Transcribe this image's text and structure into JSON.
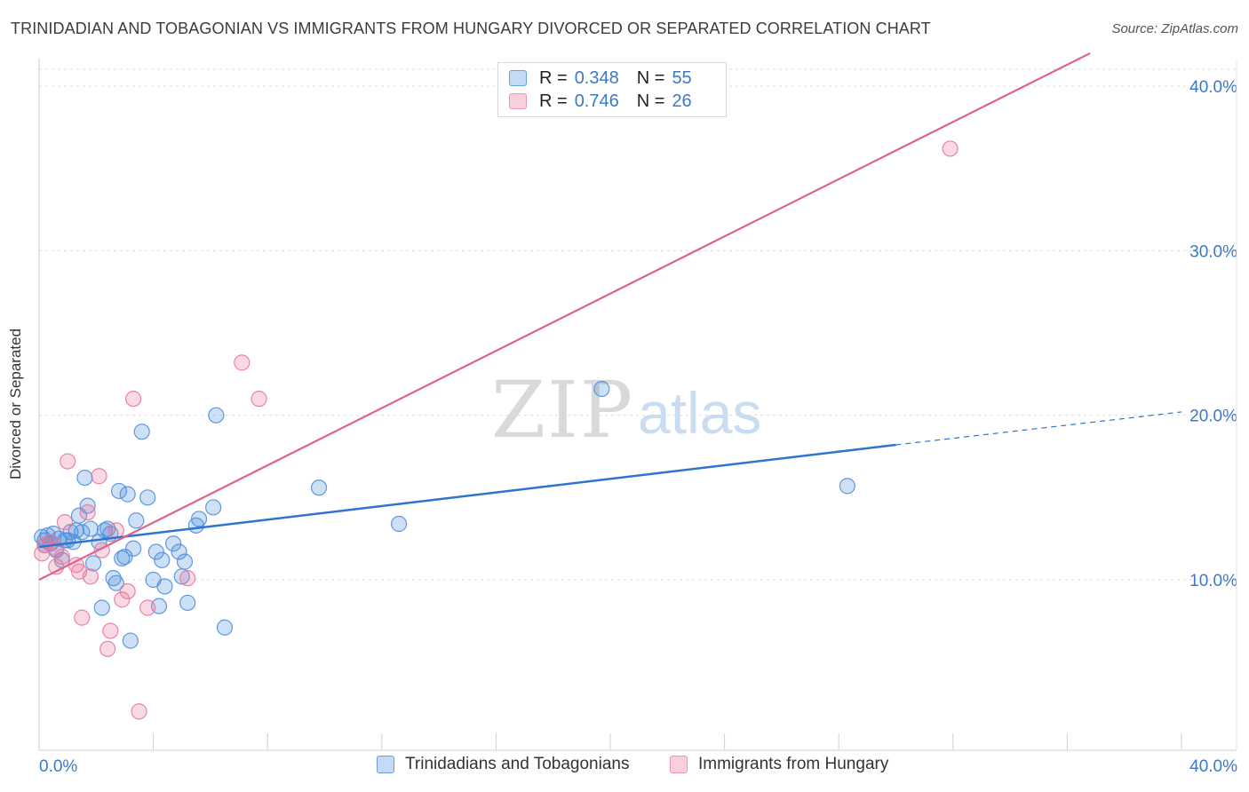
{
  "title": "TRINIDADIAN AND TOBAGONIAN VS IMMIGRANTS FROM HUNGARY DIVORCED OR SEPARATED CORRELATION CHART",
  "source": "Source: ZipAtlas.com",
  "watermark": {
    "zip": "ZIP",
    "atlas": "atlas"
  },
  "legend_top": [
    {
      "r_label": "R =",
      "r_value": "0.348",
      "n_label": "N =",
      "n_value": "55"
    },
    {
      "r_label": "R =",
      "r_value": "0.746",
      "n_label": "N =",
      "n_value": "26"
    }
  ],
  "chart_data": {
    "type": "scatter",
    "title": "TRINIDADIAN AND TOBAGONIAN VS IMMIGRANTS FROM HUNGARY DIVORCED OR SEPARATED CORRELATION CHART",
    "xlabel": "",
    "ylabel": "Divorced or Separated",
    "xlim": [
      0,
      40
    ],
    "ylim": [
      0,
      42
    ],
    "x_tick_labels": [
      "0.0%",
      "40.0%"
    ],
    "y_ticks": [
      10,
      20,
      30,
      40
    ],
    "y_tick_labels": [
      "10.0%",
      "20.0%",
      "30.0%",
      "40.0%"
    ],
    "grid": true,
    "colors": {
      "blue": "#4f8fdc",
      "pink": "#e8789c",
      "blue_line": "#2f74d0",
      "pink_line": "#e0628c",
      "tick_text": "#3a78c9"
    },
    "series": [
      {
        "name": "Trinidadians and Tobagonians",
        "color": "blue",
        "points": [
          [
            0.1,
            12.6
          ],
          [
            0.2,
            12.4
          ],
          [
            0.3,
            12.7
          ],
          [
            0.4,
            12.2
          ],
          [
            0.5,
            12.8
          ],
          [
            0.6,
            11.8
          ],
          [
            0.7,
            12.5
          ],
          [
            0.8,
            11.2
          ],
          [
            0.9,
            12.4
          ],
          [
            1.0,
            12.4
          ],
          [
            1.1,
            12.9
          ],
          [
            1.2,
            12.3
          ],
          [
            1.3,
            13.0
          ],
          [
            1.4,
            13.9
          ],
          [
            1.5,
            12.9
          ],
          [
            1.6,
            16.2
          ],
          [
            1.7,
            14.5
          ],
          [
            1.8,
            13.1
          ],
          [
            1.9,
            11.0
          ],
          [
            2.1,
            12.3
          ],
          [
            2.2,
            8.3
          ],
          [
            2.3,
            13.0
          ],
          [
            2.4,
            13.1
          ],
          [
            2.5,
            12.8
          ],
          [
            2.6,
            10.1
          ],
          [
            2.7,
            9.8
          ],
          [
            2.8,
            15.4
          ],
          [
            2.9,
            11.3
          ],
          [
            3.0,
            11.4
          ],
          [
            3.1,
            15.2
          ],
          [
            3.2,
            6.3
          ],
          [
            3.3,
            11.9
          ],
          [
            3.4,
            13.6
          ],
          [
            3.6,
            19.0
          ],
          [
            3.8,
            15.0
          ],
          [
            4.0,
            10.0
          ],
          [
            4.1,
            11.7
          ],
          [
            4.2,
            8.4
          ],
          [
            4.3,
            11.2
          ],
          [
            4.4,
            9.6
          ],
          [
            4.7,
            12.2
          ],
          [
            4.9,
            11.7
          ],
          [
            5.0,
            10.2
          ],
          [
            5.1,
            11.1
          ],
          [
            5.2,
            8.6
          ],
          [
            5.5,
            13.3
          ],
          [
            5.6,
            13.7
          ],
          [
            6.1,
            14.4
          ],
          [
            6.2,
            20.0
          ],
          [
            6.5,
            7.1
          ],
          [
            9.8,
            15.6
          ],
          [
            12.6,
            13.4
          ],
          [
            19.7,
            21.6
          ],
          [
            28.3,
            15.7
          ],
          [
            0.2,
            12.1
          ]
        ]
      },
      {
        "name": "Immigrants from Hungary",
        "color": "pink",
        "points": [
          [
            0.1,
            11.6
          ],
          [
            0.2,
            12.1
          ],
          [
            0.4,
            12.3
          ],
          [
            0.6,
            11.9
          ],
          [
            0.8,
            11.4
          ],
          [
            0.6,
            10.8
          ],
          [
            0.9,
            13.5
          ],
          [
            1.0,
            17.2
          ],
          [
            1.3,
            10.9
          ],
          [
            1.4,
            10.5
          ],
          [
            1.5,
            7.7
          ],
          [
            1.7,
            14.1
          ],
          [
            1.8,
            10.2
          ],
          [
            2.1,
            16.3
          ],
          [
            2.2,
            11.8
          ],
          [
            2.4,
            5.8
          ],
          [
            2.5,
            6.9
          ],
          [
            2.7,
            13.0
          ],
          [
            2.9,
            8.8
          ],
          [
            3.1,
            9.3
          ],
          [
            3.3,
            21.0
          ],
          [
            3.5,
            2.0
          ],
          [
            3.8,
            8.3
          ],
          [
            5.2,
            10.1
          ],
          [
            7.1,
            23.2
          ],
          [
            7.7,
            21.0
          ]
        ]
      }
    ],
    "trend_lines": [
      {
        "series": "Trinidadians and Tobagonians",
        "x0": 0,
        "y0": 12.0,
        "x1": 30,
        "y1": 18.2,
        "dashed_to_x": 40,
        "dashed_to_y": 20.2
      },
      {
        "series": "Immigrants from Hungary",
        "x0": 0,
        "y0": 10.0,
        "x1": 36.8,
        "y1": 42.0
      }
    ],
    "outliers_pink": [
      [
        31.9,
        36.2
      ]
    ]
  },
  "bottom_legend": [
    {
      "label": "Trinidadians and Tobagonians",
      "color": "blue"
    },
    {
      "label": "Immigrants from Hungary",
      "color": "pink"
    }
  ]
}
